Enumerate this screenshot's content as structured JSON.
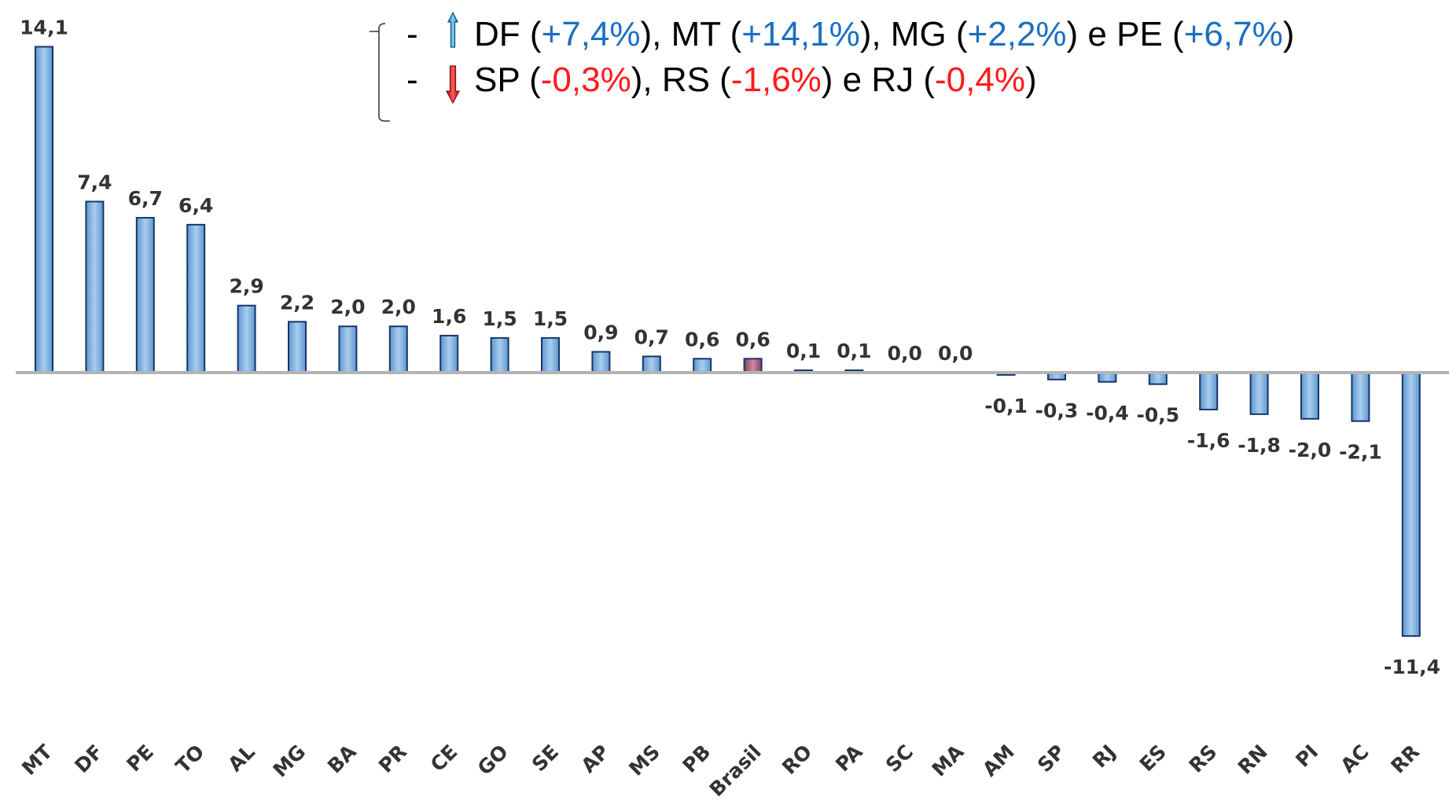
{
  "chart_data": {
    "type": "bar",
    "categories": [
      "MT",
      "DF",
      "PE",
      "TO",
      "AL",
      "MG",
      "BA",
      "PR",
      "CE",
      "GO",
      "SE",
      "AP",
      "MS",
      "PB",
      "Brasil",
      "RO",
      "PA",
      "SC",
      "MA",
      "AM",
      "SP",
      "RJ",
      "ES",
      "RS",
      "RN",
      "PI",
      "AC",
      "RR"
    ],
    "values": [
      14.1,
      7.4,
      6.7,
      6.4,
      2.9,
      2.2,
      2.0,
      2.0,
      1.6,
      1.5,
      1.5,
      0.9,
      0.7,
      0.6,
      0.6,
      0.1,
      0.1,
      0.0,
      0.0,
      -0.1,
      -0.3,
      -0.4,
      -0.5,
      -1.6,
      -1.8,
      -2.0,
      -2.1,
      -11.4
    ],
    "value_labels": [
      "14,1",
      "7,4",
      "6,7",
      "6,4",
      "2,9",
      "2,2",
      "2,0",
      "2,0",
      "1,6",
      "1,5",
      "1,5",
      "0,9",
      "0,7",
      "0,6",
      "0,6",
      "0,1",
      "0,1",
      "0,0",
      "0,0",
      "-0,1",
      "-0,3",
      "-0,4",
      "-0,5",
      "-1,6",
      "-1,8",
      "-2,0",
      "-2,1",
      "-11,4"
    ],
    "highlight_category": "Brasil",
    "colors": {
      "bar": "#7aaee0",
      "bar_edge": "#16366b",
      "highlight": "#b05a7a",
      "axis": "#b3b3b3"
    },
    "title": "",
    "xlabel": "",
    "ylabel": "",
    "grid": false,
    "legend": {
      "placement": "top-right",
      "lines": [
        {
          "arrow": "up",
          "arrow_color": "#29a8e0",
          "parts": [
            {
              "text": "DF (",
              "c": "k"
            },
            {
              "text": "+7,4%",
              "c": "b"
            },
            {
              "text": "), MT (",
              "c": "k"
            },
            {
              "text": "+14,1%",
              "c": "b"
            },
            {
              "text": "), MG (",
              "c": "k"
            },
            {
              "text": "+2,2%",
              "c": "b"
            },
            {
              "text": ") e PE (",
              "c": "k"
            },
            {
              "text": "+6,7%",
              "c": "b"
            },
            {
              "text": ")",
              "c": "k"
            }
          ]
        },
        {
          "arrow": "down",
          "arrow_color": "#e11b1b",
          "parts": [
            {
              "text": "SP (",
              "c": "k"
            },
            {
              "text": "-0,3%",
              "c": "r"
            },
            {
              "text": "), RS (",
              "c": "k"
            },
            {
              "text": "-1,6%",
              "c": "r"
            },
            {
              "text": ") e RJ (",
              "c": "k"
            },
            {
              "text": "-0,4%",
              "c": "r"
            },
            {
              "text": ")",
              "c": "k"
            }
          ]
        }
      ]
    }
  }
}
